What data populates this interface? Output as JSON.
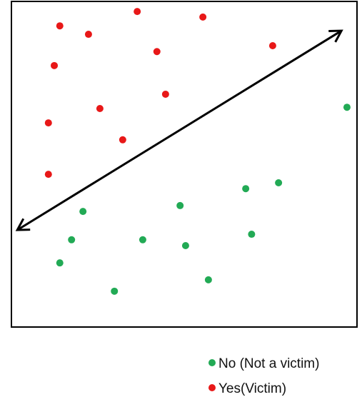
{
  "colors": {
    "no": "#22aa55",
    "yes": "#e81818",
    "frame": "#000000",
    "arrow": "#000000"
  },
  "legend": {
    "no_label": "No (Not a victim)",
    "yes_label": "Yes(Victim)"
  },
  "chart_data": {
    "type": "scatter",
    "title": "",
    "xlabel": "",
    "ylabel": "",
    "grid": false,
    "legend_placement": "bottom-right (outside plot)",
    "xlim": [
      0,
      100
    ],
    "ylim": [
      0,
      100
    ],
    "series": [
      {
        "name": "No (Not a victim)",
        "color_key": "no",
        "points": [
          [
            97.1,
            67.5
          ],
          [
            77.3,
            44.3
          ],
          [
            67.8,
            42.5
          ],
          [
            48.8,
            37.3
          ],
          [
            20.7,
            35.5
          ],
          [
            69.5,
            28.5
          ],
          [
            17.4,
            26.8
          ],
          [
            38.0,
            26.8
          ],
          [
            50.4,
            25.0
          ],
          [
            14.0,
            19.7
          ],
          [
            57.0,
            14.5
          ],
          [
            29.8,
            11.0
          ]
        ]
      },
      {
        "name": "Yes(Victim)",
        "color_key": "yes",
        "points": [
          [
            36.4,
            96.9
          ],
          [
            55.4,
            95.2
          ],
          [
            14.0,
            92.5
          ],
          [
            22.3,
            89.9
          ],
          [
            75.6,
            86.4
          ],
          [
            42.1,
            84.6
          ],
          [
            12.4,
            80.3
          ],
          [
            44.6,
            71.5
          ],
          [
            25.6,
            67.1
          ],
          [
            10.7,
            62.7
          ],
          [
            32.2,
            57.5
          ],
          [
            10.7,
            46.9
          ]
        ]
      }
    ],
    "annotations": [
      {
        "type": "double-arrow",
        "from": [
          1.7,
          29.8
        ],
        "to": [
          95.5,
          91.0
        ]
      }
    ]
  }
}
